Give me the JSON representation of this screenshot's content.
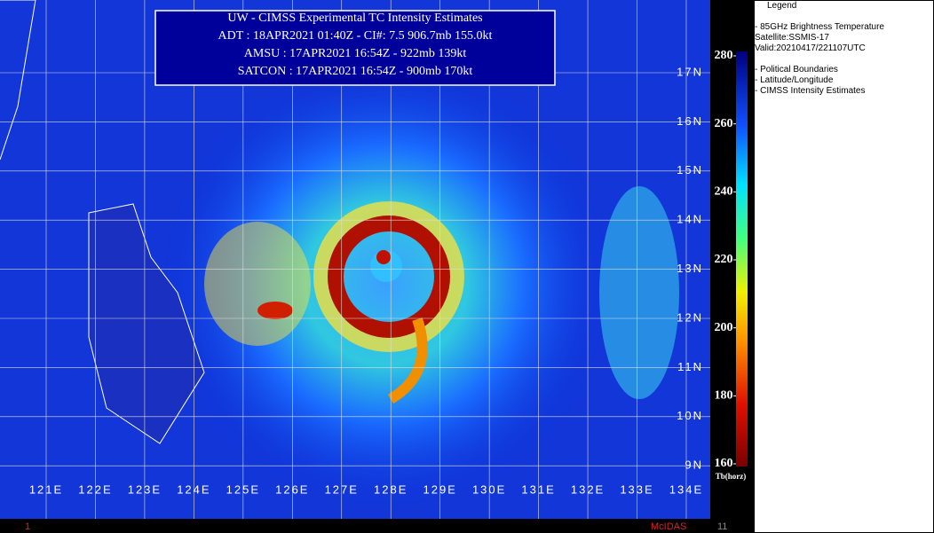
{
  "info_box": {
    "title": "UW - CIMSS Experimental TC Intensity Estimates",
    "lines": [
      "ADT : 18APR2021 01:40Z -  CI#: 7.5   906.7mb   155.0kt",
      "AMSU : 17APR2021 16:54Z -   922mb   139kt",
      "SATCON : 17APR2021 16:54Z -  900mb   170kt"
    ]
  },
  "map": {
    "latitudes": [
      {
        "value": 17,
        "label": "17N"
      },
      {
        "value": 16,
        "label": "16N"
      },
      {
        "value": 15,
        "label": "15N"
      },
      {
        "value": 14,
        "label": "14N"
      },
      {
        "value": 13,
        "label": "13N"
      },
      {
        "value": 12,
        "label": "12N"
      },
      {
        "value": 11,
        "label": "11N"
      },
      {
        "value": 10,
        "label": "10N"
      },
      {
        "value": 9,
        "label": "9N"
      }
    ],
    "longitudes": [
      {
        "value": 121,
        "label": "121E"
      },
      {
        "value": 122,
        "label": "122E"
      },
      {
        "value": 123,
        "label": "123E"
      },
      {
        "value": 124,
        "label": "124E"
      },
      {
        "value": 125,
        "label": "125E"
      },
      {
        "value": 126,
        "label": "126E"
      },
      {
        "value": 127,
        "label": "127E"
      },
      {
        "value": 128,
        "label": "128E"
      },
      {
        "value": 129,
        "label": "129E"
      },
      {
        "value": 130,
        "label": "130E"
      },
      {
        "value": 131,
        "label": "131E"
      },
      {
        "value": 132,
        "label": "132E"
      },
      {
        "value": 133,
        "label": "133E"
      },
      {
        "value": 134,
        "label": "134E"
      }
    ]
  },
  "colorbar": {
    "range": [
      160,
      280
    ],
    "ticks": [
      280,
      260,
      240,
      220,
      200,
      180,
      160
    ],
    "label": "Tb(horz)"
  },
  "legend": {
    "title": "Legend",
    "product": "- 85GHz Brightness Temperature",
    "satellite": "Satellite:SSMIS-17",
    "valid": "Valid:20210417/221107UTC",
    "overlays": [
      "- Political Boundaries",
      "- Latitude/Longitude",
      "- CIMSS Intensity Estimates"
    ]
  },
  "footer": {
    "frame": "1",
    "software": "McIDAS",
    "frame_count": "11"
  }
}
